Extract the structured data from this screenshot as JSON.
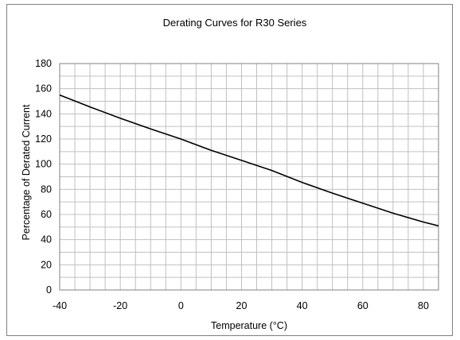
{
  "chart_data": {
    "type": "line",
    "title": "Derating Curves for R30 Series",
    "xlabel": "Temperature (°C)",
    "ylabel": "Percentage of Derated Current",
    "xlim": [
      -40,
      85
    ],
    "ylim": [
      0,
      180
    ],
    "x_ticks": [
      -40,
      -20,
      0,
      20,
      40,
      60,
      80
    ],
    "y_ticks": [
      0,
      20,
      40,
      60,
      80,
      100,
      120,
      140,
      160,
      180
    ],
    "x_tick_labels": [
      "-40",
      "-20",
      "0",
      "20",
      "40",
      "60",
      "80"
    ],
    "y_tick_labels": [
      "0",
      "20",
      "40",
      "60",
      "80",
      "100",
      "120",
      "140",
      "160",
      "180"
    ],
    "x_minor_step": 5,
    "y_minor_step": 10,
    "grid": true,
    "colors": {
      "line": "#000000",
      "grid": "#c0c0c0",
      "border": "#808080"
    },
    "series": [
      {
        "x": [
          -40,
          -30,
          -20,
          -10,
          0,
          10,
          20,
          30,
          40,
          50,
          60,
          70,
          80,
          85
        ],
        "y": [
          155,
          145.5,
          136.5,
          128,
          120,
          111,
          103,
          95,
          85.5,
          77,
          69,
          61,
          54,
          51
        ]
      }
    ]
  }
}
